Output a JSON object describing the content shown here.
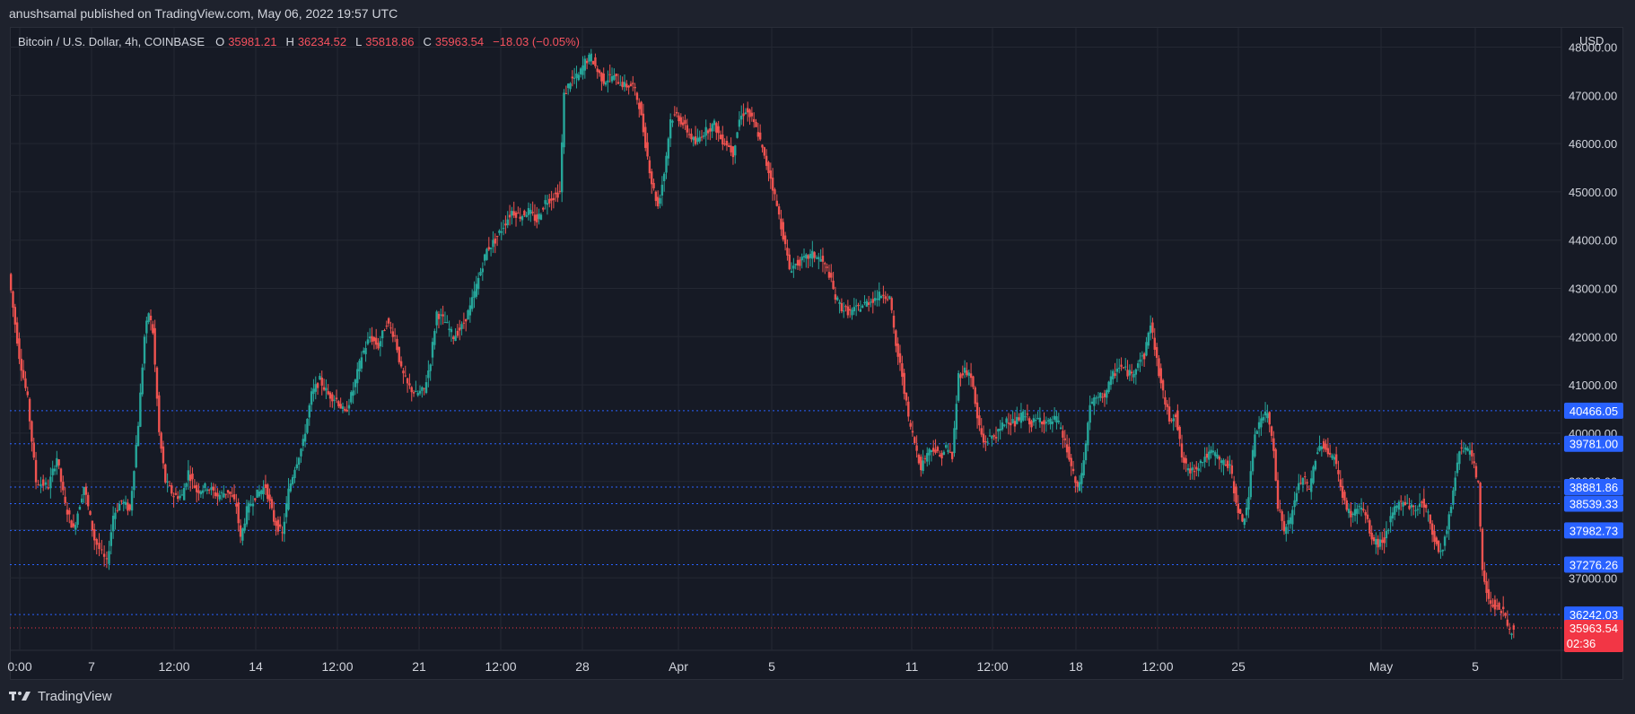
{
  "header": {
    "published_text": "anushsamal published on TradingView.com, May 06, 2022 19:57 UTC"
  },
  "legend": {
    "symbol": "Bitcoin / U.S. Dollar, 4h, COINBASE",
    "o_label": "O",
    "o_value": "35981.21",
    "h_label": "H",
    "h_value": "36234.52",
    "l_label": "L",
    "l_value": "35818.86",
    "c_label": "C",
    "c_value": "35963.54",
    "change": "−18.03 (−0.05%)"
  },
  "footer": {
    "brand": "TradingView"
  },
  "colors": {
    "up": "#26a69a",
    "down": "#ef5350",
    "level_line": "#2962ff",
    "level_badge": "#2962ff",
    "price_badge": "#f23645",
    "background": "#161a25",
    "grid": "#242833"
  },
  "chart_data": {
    "type": "candlestick",
    "title": "Bitcoin / U.S. Dollar, 4h, COINBASE",
    "currency_label": "USD",
    "ylim": [
      35500,
      48400
    ],
    "y_ticks": [
      "48000.00",
      "47000.00",
      "46000.00",
      "45000.00",
      "44000.00",
      "43000.00",
      "42000.00",
      "41000.00",
      "40000.00",
      "39000.00",
      "38000.00",
      "37000.00"
    ],
    "x_tick_labels": [
      "0:00",
      "7",
      "12:00",
      "14",
      "12:00",
      "21",
      "12:00",
      "28",
      "Apr",
      "5",
      "11",
      "12:00",
      "18",
      "12:00",
      "25",
      "May",
      "5"
    ],
    "horizontal_levels": [
      {
        "label": "40466.05",
        "value": 40466.05
      },
      {
        "label": "39781.00",
        "value": 39781.0
      },
      {
        "label": "38881.86",
        "value": 38881.86
      },
      {
        "label": "38539.33",
        "value": 38539.33
      },
      {
        "label": "37982.73",
        "value": 37982.73
      },
      {
        "label": "37276.26",
        "value": 37276.26
      },
      {
        "label": "36242.03",
        "value": 36242.03
      }
    ],
    "last_price": {
      "label": "35963.54",
      "value": 35963.54,
      "countdown": "02:36"
    },
    "price_path_points": [
      [
        0,
        43300
      ],
      [
        4,
        42600
      ],
      [
        10,
        41600
      ],
      [
        18,
        40700
      ],
      [
        26,
        39000
      ],
      [
        38,
        38900
      ],
      [
        46,
        39500
      ],
      [
        54,
        38500
      ],
      [
        62,
        38000
      ],
      [
        72,
        38900
      ],
      [
        82,
        37800
      ],
      [
        94,
        37300
      ],
      [
        100,
        38300
      ],
      [
        108,
        38600
      ],
      [
        116,
        38400
      ],
      [
        124,
        40200
      ],
      [
        130,
        42000
      ],
      [
        134,
        42500
      ],
      [
        138,
        42100
      ],
      [
        144,
        40000
      ],
      [
        150,
        39000
      ],
      [
        158,
        38700
      ],
      [
        166,
        38700
      ],
      [
        172,
        39200
      ],
      [
        180,
        38800
      ],
      [
        190,
        38900
      ],
      [
        200,
        38700
      ],
      [
        210,
        38800
      ],
      [
        218,
        38500
      ],
      [
        222,
        37800
      ],
      [
        228,
        38400
      ],
      [
        236,
        38700
      ],
      [
        246,
        38900
      ],
      [
        254,
        38200
      ],
      [
        262,
        37900
      ],
      [
        268,
        38800
      ],
      [
        274,
        39300
      ],
      [
        282,
        39800
      ],
      [
        290,
        40800
      ],
      [
        298,
        41100
      ],
      [
        306,
        40800
      ],
      [
        314,
        40700
      ],
      [
        322,
        40400
      ],
      [
        330,
        40900
      ],
      [
        338,
        41600
      ],
      [
        346,
        42000
      ],
      [
        354,
        41800
      ],
      [
        362,
        42300
      ],
      [
        370,
        42000
      ],
      [
        376,
        41300
      ],
      [
        382,
        41000
      ],
      [
        390,
        40800
      ],
      [
        398,
        40900
      ],
      [
        404,
        41500
      ],
      [
        410,
        42500
      ],
      [
        418,
        42300
      ],
      [
        426,
        42000
      ],
      [
        434,
        42200
      ],
      [
        442,
        42600
      ],
      [
        450,
        43200
      ],
      [
        458,
        43800
      ],
      [
        466,
        44000
      ],
      [
        474,
        44300
      ],
      [
        482,
        44600
      ],
      [
        490,
        44500
      ],
      [
        498,
        44600
      ],
      [
        506,
        44400
      ],
      [
        514,
        44800
      ],
      [
        522,
        44900
      ],
      [
        528,
        45000
      ],
      [
        532,
        47000
      ],
      [
        538,
        47300
      ],
      [
        546,
        47400
      ],
      [
        552,
        47700
      ],
      [
        558,
        47800
      ],
      [
        564,
        47500
      ],
      [
        570,
        47300
      ],
      [
        578,
        47400
      ],
      [
        584,
        47300
      ],
      [
        590,
        47200
      ],
      [
        598,
        47200
      ],
      [
        604,
        46800
      ],
      [
        610,
        46000
      ],
      [
        616,
        45200
      ],
      [
        622,
        44700
      ],
      [
        628,
        45400
      ],
      [
        634,
        46500
      ],
      [
        640,
        46600
      ],
      [
        646,
        46400
      ],
      [
        652,
        46200
      ],
      [
        658,
        46000
      ],
      [
        664,
        46200
      ],
      [
        670,
        46300
      ],
      [
        676,
        46400
      ],
      [
        682,
        46100
      ],
      [
        688,
        46000
      ],
      [
        694,
        45800
      ],
      [
        700,
        46500
      ],
      [
        706,
        46700
      ],
      [
        712,
        46500
      ],
      [
        718,
        46200
      ],
      [
        724,
        45700
      ],
      [
        730,
        45300
      ],
      [
        736,
        44700
      ],
      [
        742,
        44100
      ],
      [
        748,
        43400
      ],
      [
        754,
        43500
      ],
      [
        762,
        43600
      ],
      [
        770,
        43700
      ],
      [
        778,
        43600
      ],
      [
        786,
        43300
      ],
      [
        792,
        42800
      ],
      [
        798,
        42600
      ],
      [
        806,
        42500
      ],
      [
        814,
        42600
      ],
      [
        822,
        42700
      ],
      [
        830,
        42800
      ],
      [
        838,
        42900
      ],
      [
        844,
        42800
      ],
      [
        850,
        41800
      ],
      [
        856,
        41200
      ],
      [
        862,
        40300
      ],
      [
        868,
        39800
      ],
      [
        874,
        39300
      ],
      [
        880,
        39600
      ],
      [
        886,
        39700
      ],
      [
        892,
        39500
      ],
      [
        898,
        39700
      ],
      [
        904,
        39500
      ],
      [
        910,
        41200
      ],
      [
        916,
        41300
      ],
      [
        922,
        41200
      ],
      [
        928,
        40300
      ],
      [
        934,
        39800
      ],
      [
        940,
        39900
      ],
      [
        948,
        40000
      ],
      [
        956,
        40300
      ],
      [
        964,
        40200
      ],
      [
        972,
        40400
      ],
      [
        980,
        40200
      ],
      [
        988,
        40300
      ],
      [
        996,
        40200
      ],
      [
        1004,
        40300
      ],
      [
        1012,
        39800
      ],
      [
        1018,
        39300
      ],
      [
        1024,
        38800
      ],
      [
        1030,
        39400
      ],
      [
        1036,
        40600
      ],
      [
        1042,
        40700
      ],
      [
        1050,
        40800
      ],
      [
        1058,
        41200
      ],
      [
        1064,
        41400
      ],
      [
        1070,
        41300
      ],
      [
        1076,
        41200
      ],
      [
        1082,
        41500
      ],
      [
        1088,
        41600
      ],
      [
        1094,
        42300
      ],
      [
        1100,
        41500
      ],
      [
        1106,
        40800
      ],
      [
        1112,
        40300
      ],
      [
        1118,
        40400
      ],
      [
        1124,
        39500
      ],
      [
        1130,
        39200
      ],
      [
        1138,
        39300
      ],
      [
        1146,
        39500
      ],
      [
        1154,
        39600
      ],
      [
        1162,
        39400
      ],
      [
        1170,
        39300
      ],
      [
        1176,
        38600
      ],
      [
        1182,
        38100
      ],
      [
        1188,
        38700
      ],
      [
        1194,
        40000
      ],
      [
        1200,
        40300
      ],
      [
        1206,
        40400
      ],
      [
        1212,
        39700
      ],
      [
        1216,
        38500
      ],
      [
        1222,
        38000
      ],
      [
        1228,
        38200
      ],
      [
        1234,
        38800
      ],
      [
        1240,
        39100
      ],
      [
        1246,
        38800
      ],
      [
        1252,
        39500
      ],
      [
        1258,
        39800
      ],
      [
        1264,
        39600
      ],
      [
        1270,
        39500
      ],
      [
        1276,
        38900
      ],
      [
        1282,
        38400
      ],
      [
        1288,
        38300
      ],
      [
        1294,
        38500
      ],
      [
        1300,
        38300
      ],
      [
        1306,
        37800
      ],
      [
        1312,
        37700
      ],
      [
        1318,
        37800
      ],
      [
        1324,
        38200
      ],
      [
        1330,
        38500
      ],
      [
        1336,
        38600
      ],
      [
        1342,
        38500
      ],
      [
        1348,
        38400
      ],
      [
        1354,
        38600
      ],
      [
        1360,
        38300
      ],
      [
        1366,
        37800
      ],
      [
        1372,
        37500
      ],
      [
        1378,
        38000
      ],
      [
        1384,
        38800
      ],
      [
        1390,
        39700
      ],
      [
        1396,
        39700
      ],
      [
        1402,
        39500
      ],
      [
        1408,
        38900
      ],
      [
        1412,
        37200
      ],
      [
        1416,
        36700
      ],
      [
        1420,
        36500
      ],
      [
        1426,
        36400
      ],
      [
        1432,
        36300
      ],
      [
        1438,
        35900
      ],
      [
        1442,
        35963.54
      ]
    ]
  }
}
